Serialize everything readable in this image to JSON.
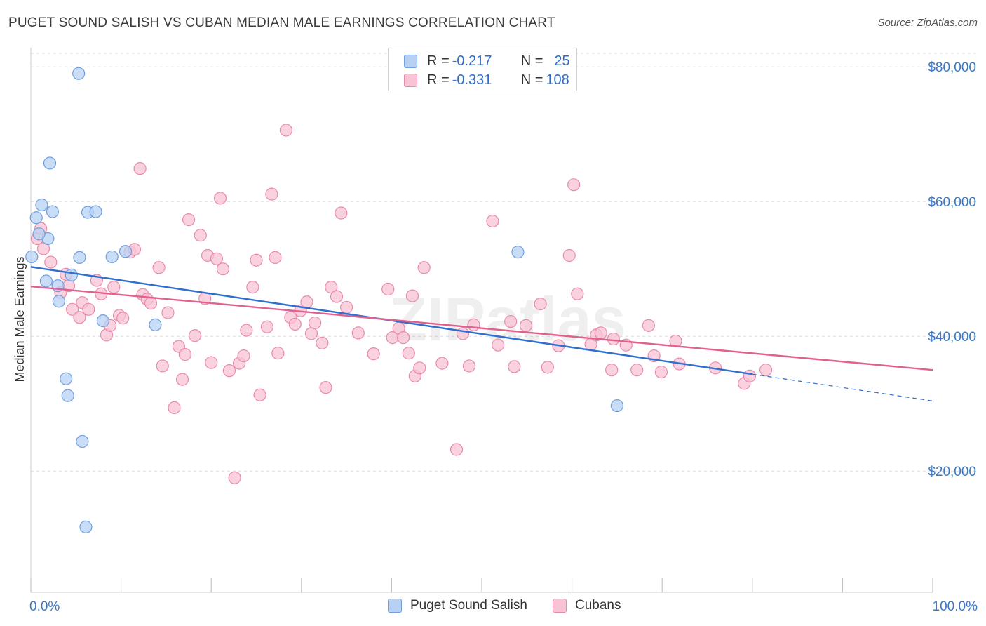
{
  "title": "PUGET SOUND SALISH VS CUBAN MEDIAN MALE EARNINGS CORRELATION CHART",
  "source": "Source: ZipAtlas.com",
  "watermark": "ZIPatlas",
  "colors": {
    "blue_fill": "#b8d1f3",
    "blue_stroke": "#6f9fe0",
    "blue_line": "#2f6fd0",
    "pink_fill": "#f8c3d4",
    "pink_stroke": "#e98aab",
    "pink_line": "#e06090",
    "axis_text": "#3a78c9",
    "grid": "#dddddd"
  },
  "stats": {
    "rows": [
      {
        "series": "Puget Sound Salish",
        "r_label": "R = ",
        "r_value": "-0.217",
        "n_label": "N = ",
        "n_value": "25"
      },
      {
        "series": "Cubans",
        "r_label": "R = ",
        "r_value": "-0.331",
        "n_label": "N = ",
        "n_value": "108"
      }
    ]
  },
  "chart_data": {
    "type": "scatter",
    "title": "PUGET SOUND SALISH VS CUBAN MEDIAN MALE EARNINGS CORRELATION CHART",
    "xlabel": "",
    "ylabel": "Median Male Earnings",
    "x_tick_labels": [
      "0.0%",
      "100.0%"
    ],
    "y_tick_labels": [
      "$20,000",
      "$40,000",
      "$60,000",
      "$80,000"
    ],
    "y_ticks": [
      20000,
      40000,
      60000,
      80000
    ],
    "xlim": [
      0,
      100
    ],
    "ylim": [
      2000,
      82000
    ],
    "grid": true,
    "legend_position": "bottom",
    "series": [
      {
        "name": "Puget Sound Salish",
        "color": "#6f9fe0",
        "trend": {
          "x0": 0,
          "y0": 50300,
          "x1": 100,
          "y1": 30400,
          "solid_until": 80
        },
        "points": [
          [
            5.3,
            79000
          ],
          [
            2.1,
            65700
          ],
          [
            1.2,
            59500
          ],
          [
            2.4,
            58500
          ],
          [
            6.3,
            58400
          ],
          [
            7.2,
            58500
          ],
          [
            0.6,
            57600
          ],
          [
            1.9,
            54500
          ],
          [
            0.9,
            55200
          ],
          [
            0.1,
            51800
          ],
          [
            5.4,
            51700
          ],
          [
            9.0,
            51800
          ],
          [
            10.5,
            52600
          ],
          [
            4.5,
            49100
          ],
          [
            1.7,
            48200
          ],
          [
            3.0,
            47500
          ],
          [
            3.1,
            45200
          ],
          [
            8.0,
            42300
          ],
          [
            13.8,
            41700
          ],
          [
            54.0,
            52500
          ],
          [
            65.0,
            29700
          ],
          [
            3.9,
            33700
          ],
          [
            4.1,
            31200
          ],
          [
            5.7,
            24400
          ],
          [
            6.1,
            11700
          ]
        ]
      },
      {
        "name": "Cubans",
        "color": "#e98aab",
        "trend": {
          "x0": 0,
          "y0": 47400,
          "x1": 100,
          "y1": 35000,
          "solid_until": 100
        },
        "points": [
          [
            0.7,
            54500
          ],
          [
            1.1,
            56000
          ],
          [
            1.4,
            53000
          ],
          [
            2.2,
            51000
          ],
          [
            3.3,
            46500
          ],
          [
            3.9,
            49200
          ],
          [
            4.2,
            47500
          ],
          [
            4.6,
            44000
          ],
          [
            5.4,
            42800
          ],
          [
            5.7,
            45000
          ],
          [
            6.4,
            44000
          ],
          [
            7.3,
            48300
          ],
          [
            7.8,
            46300
          ],
          [
            8.4,
            40200
          ],
          [
            8.8,
            41600
          ],
          [
            9.2,
            47300
          ],
          [
            9.8,
            43100
          ],
          [
            10.2,
            42700
          ],
          [
            11.0,
            52500
          ],
          [
            11.5,
            52900
          ],
          [
            12.1,
            64900
          ],
          [
            12.4,
            46200
          ],
          [
            12.9,
            45500
          ],
          [
            13.3,
            44900
          ],
          [
            14.2,
            50200
          ],
          [
            14.6,
            35600
          ],
          [
            15.2,
            43500
          ],
          [
            15.9,
            29400
          ],
          [
            16.4,
            38500
          ],
          [
            16.8,
            33600
          ],
          [
            17.1,
            37300
          ],
          [
            17.5,
            57300
          ],
          [
            18.2,
            40100
          ],
          [
            18.8,
            55000
          ],
          [
            19.3,
            45600
          ],
          [
            19.6,
            52000
          ],
          [
            20.0,
            36100
          ],
          [
            20.6,
            51500
          ],
          [
            21.0,
            60500
          ],
          [
            21.3,
            50000
          ],
          [
            22.0,
            34900
          ],
          [
            22.6,
            19000
          ],
          [
            23.1,
            36000
          ],
          [
            23.6,
            37100
          ],
          [
            23.9,
            40900
          ],
          [
            24.6,
            47300
          ],
          [
            25.0,
            51300
          ],
          [
            25.4,
            31300
          ],
          [
            26.2,
            41400
          ],
          [
            26.7,
            61100
          ],
          [
            27.1,
            51700
          ],
          [
            27.4,
            37500
          ],
          [
            28.3,
            70600
          ],
          [
            28.8,
            42800
          ],
          [
            29.3,
            41800
          ],
          [
            29.9,
            43800
          ],
          [
            30.6,
            45100
          ],
          [
            31.1,
            40400
          ],
          [
            31.5,
            42000
          ],
          [
            32.3,
            39000
          ],
          [
            32.7,
            32400
          ],
          [
            33.3,
            47300
          ],
          [
            33.9,
            45900
          ],
          [
            34.4,
            58300
          ],
          [
            35.0,
            44300
          ],
          [
            36.3,
            40500
          ],
          [
            38.0,
            37400
          ],
          [
            39.6,
            47000
          ],
          [
            40.1,
            39800
          ],
          [
            40.8,
            41200
          ],
          [
            41.3,
            39800
          ],
          [
            41.9,
            37500
          ],
          [
            42.3,
            46000
          ],
          [
            42.6,
            34100
          ],
          [
            43.1,
            35300
          ],
          [
            43.6,
            50200
          ],
          [
            45.6,
            36000
          ],
          [
            47.2,
            23200
          ],
          [
            47.9,
            40400
          ],
          [
            48.6,
            35600
          ],
          [
            49.1,
            41700
          ],
          [
            51.2,
            57100
          ],
          [
            51.8,
            38700
          ],
          [
            53.2,
            42200
          ],
          [
            53.6,
            35500
          ],
          [
            54.9,
            41600
          ],
          [
            56.5,
            44800
          ],
          [
            58.5,
            38600
          ],
          [
            59.7,
            52000
          ],
          [
            60.2,
            62500
          ],
          [
            60.6,
            46300
          ],
          [
            62.1,
            38800
          ],
          [
            62.7,
            40200
          ],
          [
            63.2,
            40500
          ],
          [
            64.4,
            35000
          ],
          [
            67.2,
            35000
          ],
          [
            68.5,
            41600
          ],
          [
            69.1,
            37100
          ],
          [
            69.9,
            34700
          ],
          [
            71.5,
            39300
          ],
          [
            71.9,
            35900
          ],
          [
            75.9,
            35300
          ],
          [
            79.1,
            33000
          ],
          [
            79.7,
            34100
          ],
          [
            81.5,
            35000
          ],
          [
            66.0,
            38700
          ],
          [
            57.3,
            35400
          ],
          [
            64.6,
            39600
          ]
        ]
      }
    ]
  }
}
